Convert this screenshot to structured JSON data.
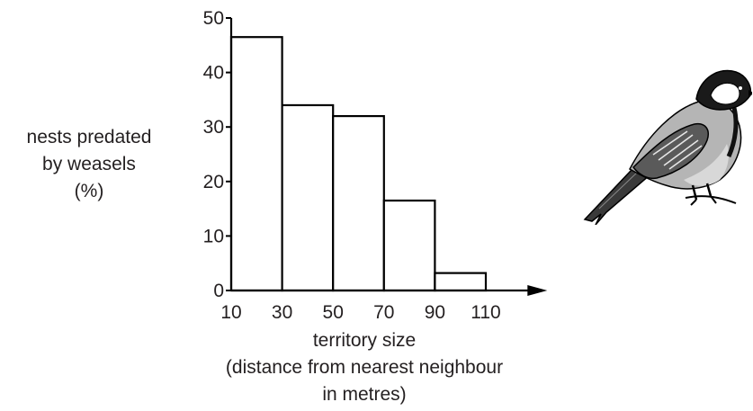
{
  "chart_data": {
    "type": "bar",
    "bins": [
      [
        10,
        30
      ],
      [
        30,
        50
      ],
      [
        50,
        70
      ],
      [
        70,
        90
      ],
      [
        90,
        110
      ]
    ],
    "values": [
      46.5,
      34,
      32,
      16.5,
      3.2
    ],
    "x_ticks": [
      10,
      30,
      50,
      70,
      90,
      110
    ],
    "y_ticks": [
      0,
      10,
      20,
      30,
      40,
      50
    ],
    "xlim": [
      10,
      120
    ],
    "ylim": [
      0,
      50
    ],
    "ylabel_lines": [
      "nests predated",
      "by weasels",
      "(%)"
    ],
    "xlabel_lines": [
      "territory size",
      "(distance from nearest neighbour",
      "in metres)"
    ],
    "bar_fill": "#ffffff",
    "line_color": "#000000",
    "grid": false
  },
  "illustration": {
    "icon": "great-tit-bird-icon"
  }
}
